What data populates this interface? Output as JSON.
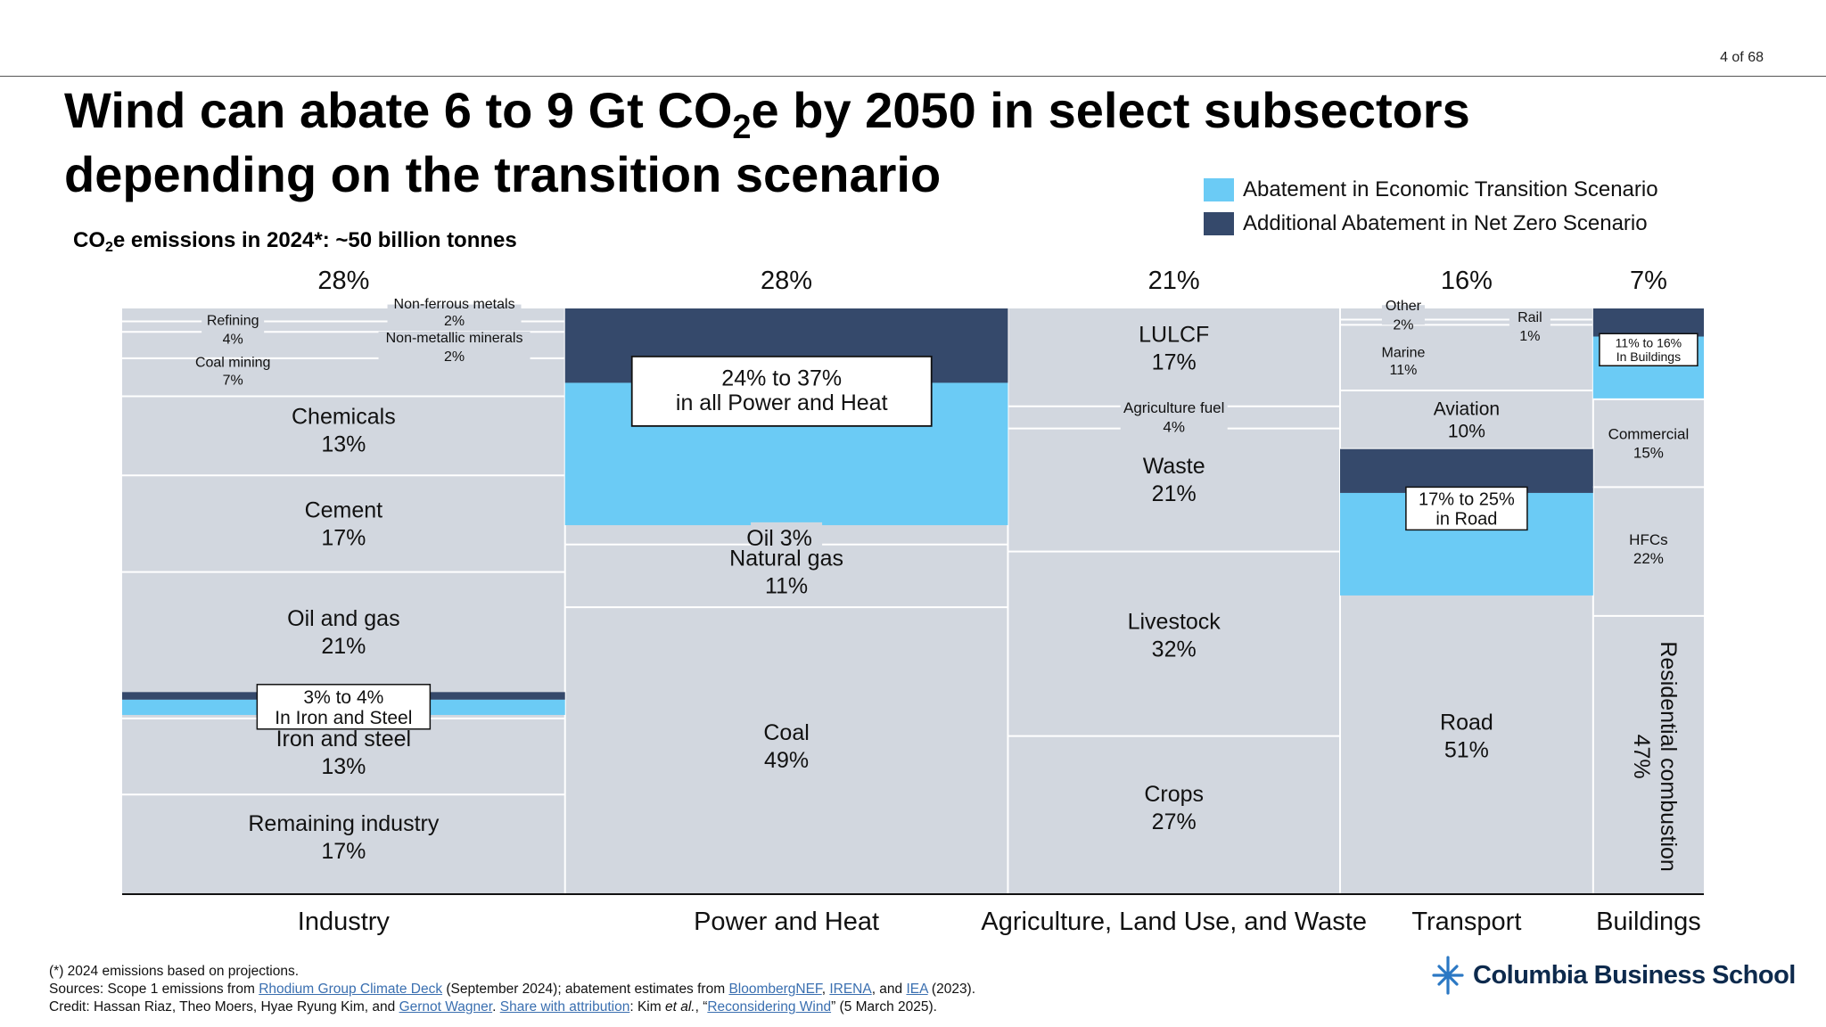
{
  "page_number": "4 of 68",
  "title": {
    "line1_a": "Wind can abate 6 to 9 Gt CO",
    "line1_sub": "2",
    "line1_b": "e by 2050 in select subsectors",
    "line2": "depending on the transition scenario"
  },
  "subtitle": {
    "a": "CO",
    "sub": "2",
    "b": "e emissions in 2024*: ~50 billion tonnes"
  },
  "legend": [
    {
      "label": "Abatement in Economic Transition Scenario",
      "color": "#6bcbf5"
    },
    {
      "label": "Additional Abatement in Net Zero Scenario",
      "color": "#35496b"
    }
  ],
  "colors": {
    "segment": "#d2d7df",
    "light": "#6bcbf5",
    "dark": "#35496b",
    "divider": "#ffffff",
    "axis": "#111111"
  },
  "chart_data": {
    "type": "marimekko",
    "title": "CO2e emissions in 2024*: ~50 billion tonnes",
    "value_range": [
      0,
      100
    ],
    "sectors": [
      {
        "name": "Industry",
        "share": 28,
        "share_label": "28%",
        "segments": [
          {
            "name": "Refining",
            "value": 4,
            "label": "4%"
          },
          {
            "name": "Non-ferrous metals",
            "value": 2,
            "label": "2%"
          },
          {
            "name": "Non-metallic minerals",
            "value": 2,
            "label": "2%"
          },
          {
            "name": "Coal mining",
            "value": 7,
            "label": "7%"
          },
          {
            "name": "Chemicals",
            "value": 13,
            "label": "13%"
          },
          {
            "name": "Cement",
            "value": 17,
            "label": "17%"
          },
          {
            "name": "Oil and gas",
            "value": 21,
            "label": "21%"
          },
          {
            "name": "Iron and steel",
            "value": 13,
            "label": "13%"
          },
          {
            "name": "Remaining industry",
            "value": 17,
            "label": "17%"
          }
        ],
        "abatement": {
          "segment": "Iron and steel",
          "economic": 3,
          "net_zero": 4,
          "label_line1": "3% to 4%",
          "label_line2": "In Iron and Steel"
        }
      },
      {
        "name": "Power and Heat",
        "share": 28,
        "share_label": "28%",
        "segments": [
          {
            "name": "Oil",
            "value": 3,
            "label": "3%"
          },
          {
            "name": "Natural gas",
            "value": 11,
            "label": "11%"
          },
          {
            "name": "Coal",
            "value": 49,
            "label": "49%"
          }
        ],
        "abatement": {
          "segment": "All Power and Heat",
          "economic": 24,
          "net_zero": 37,
          "label_line1": "24% to 37%",
          "label_line2": "in all Power and Heat"
        }
      },
      {
        "name": "Agriculture, Land Use, and Waste",
        "share": 21,
        "share_label": "21%",
        "segments": [
          {
            "name": "LULCF",
            "value": 17,
            "label": "17%"
          },
          {
            "name": "Agriculture fuel",
            "value": 4,
            "label": "4%"
          },
          {
            "name": "Waste",
            "value": 21,
            "label": "21%"
          },
          {
            "name": "Livestock",
            "value": 32,
            "label": "32%"
          },
          {
            "name": "Crops",
            "value": 27,
            "label": "27%"
          }
        ]
      },
      {
        "name": "Transport",
        "share": 16,
        "share_label": "16%",
        "segments": [
          {
            "name": "Other",
            "value": 2,
            "label": "2%"
          },
          {
            "name": "Rail",
            "value": 1,
            "label": "1%"
          },
          {
            "name": "Marine",
            "value": 11,
            "label": "11%"
          },
          {
            "name": "Aviation",
            "value": 10,
            "label": "10%"
          },
          {
            "name": "Road",
            "value": 51,
            "label": "51%"
          }
        ],
        "abatement": {
          "segment": "Road",
          "economic": 17,
          "net_zero": 25,
          "label_line1": "17% to 25%",
          "label_line2": "in Road"
        }
      },
      {
        "name": "Buildings",
        "share": 7,
        "share_label": "7%",
        "segments": [
          {
            "name": "Commercial",
            "value": 15,
            "label": "15%"
          },
          {
            "name": "HFCs",
            "value": 22,
            "label": "22%"
          },
          {
            "name": "Residential combustion",
            "value": 47,
            "label": "47%"
          }
        ],
        "abatement": {
          "segment": "In Buildings",
          "economic": 11,
          "net_zero": 16,
          "label_line1": "11% to 16%",
          "label_line2": "In Buildings"
        }
      }
    ]
  },
  "footnotes": {
    "line1": "(*) 2024 emissions based on projections.",
    "l2_a": "Sources: Scope 1 emissions from ",
    "l2_link1": "Rhodium Group Climate Deck",
    "l2_b": " (September 2024); abatement estimates from ",
    "l2_link2": "BloombergNEF",
    "l2_c": ", ",
    "l2_link3": "IRENA",
    "l2_d": ", and ",
    "l2_link4": "IEA",
    "l2_e": " (2023).",
    "l3_a": "Credit: Hassan Riaz, Theo Moers, Hyae Ryung Kim, and ",
    "l3_link1": "Gernot Wagner",
    "l3_b": ". ",
    "l3_link2": "Share with attribution",
    "l3_c": ": Kim ",
    "l3_italic": "et al.",
    "l3_d": ", “",
    "l3_link3": "Reconsidering Wind",
    "l3_e": "” (5 March 2025)."
  },
  "logo": {
    "text": "Columbia Business School",
    "icon": "columbia-crown-icon"
  }
}
